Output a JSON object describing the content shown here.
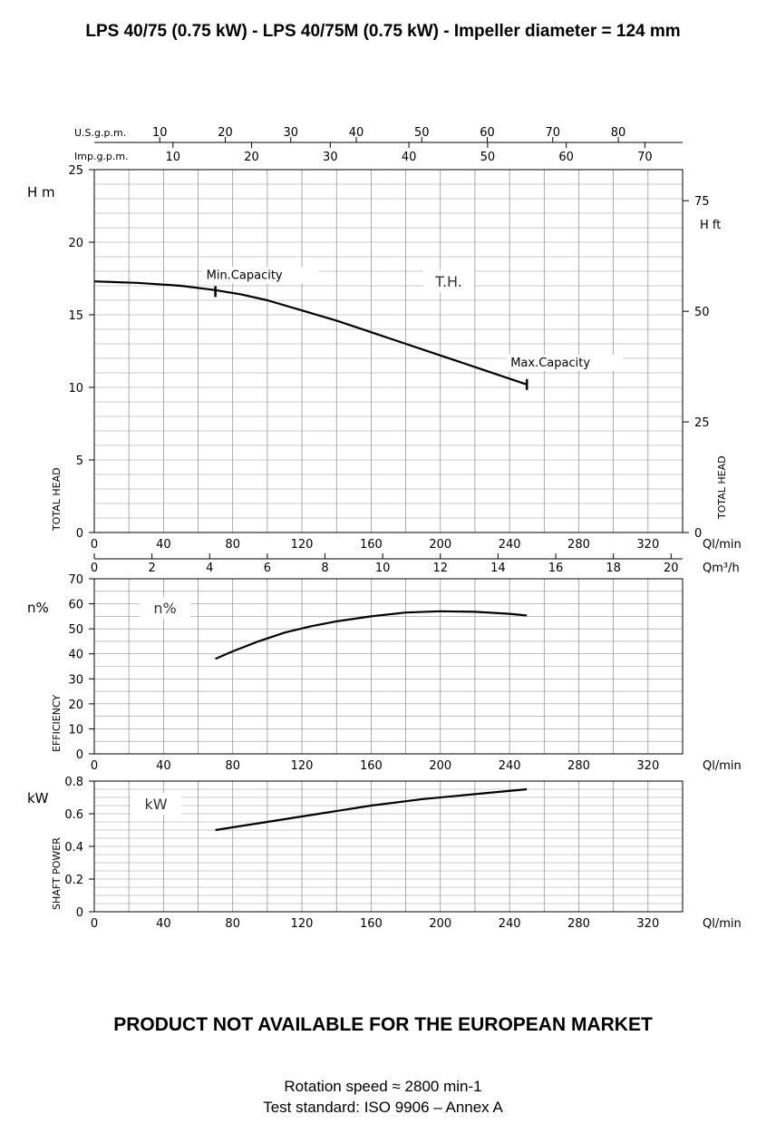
{
  "header": {
    "title": "LPS 40/75 (0.75 kW) - LPS 40/75M (0.75 kW) - Impeller diameter = 124 mm"
  },
  "footer": {
    "notice": "PRODUCT NOT AVAILABLE FOR THE EUROPEAN MARKET",
    "rotation": "Rotation speed ≈ 2800 min-1",
    "standard": "Test standard: ISO 9906 – Annex A"
  },
  "chart_data": [
    {
      "type": "line",
      "id": "head",
      "x_unit": "Ql/min",
      "y_unit": "H m",
      "ylabel": "TOTAL HEAD",
      "y2_unit": "H ft",
      "xlim": [
        0,
        340
      ],
      "ylim": [
        0,
        25
      ],
      "x_ticks": [
        0,
        40,
        80,
        120,
        160,
        200,
        240,
        280,
        320
      ],
      "y_ticks": [
        0,
        5,
        10,
        15,
        20,
        25
      ],
      "y2_ticks": [
        0,
        25,
        50,
        75
      ],
      "top_axis_us_label": "U.S.g.p.m.",
      "top_axis_us_ticks": [
        10,
        20,
        30,
        40,
        50,
        60,
        70,
        80
      ],
      "top_axis_imp_label": "Imp.g.p.m.",
      "top_axis_imp_ticks": [
        10,
        20,
        30,
        40,
        50,
        60,
        70
      ],
      "m3h_unit": "Qm³/h",
      "m3h_ticks": [
        0,
        2,
        4,
        6,
        8,
        10,
        12,
        14,
        16,
        18,
        20
      ],
      "grid": true,
      "curve_label": "T.H.",
      "annotations": [
        {
          "text": "Min.Capacity",
          "x": 70,
          "y": 16.6
        },
        {
          "text": "Max.Capacity",
          "x": 250,
          "y": 10.2
        }
      ],
      "series": [
        {
          "x": [
            0,
            25,
            50,
            70,
            85,
            100,
            120,
            140,
            160,
            180,
            200,
            220,
            240,
            250
          ],
          "y": [
            17.3,
            17.2,
            17.0,
            16.7,
            16.4,
            16.0,
            15.3,
            14.6,
            13.8,
            13.0,
            12.2,
            11.4,
            10.6,
            10.2
          ]
        }
      ]
    },
    {
      "type": "line",
      "id": "efficiency",
      "x_unit": "Ql/min",
      "y_unit": "n%",
      "ylabel": "EFFICIENCY",
      "xlim": [
        0,
        340
      ],
      "ylim": [
        0,
        70
      ],
      "x_ticks": [
        0,
        40,
        80,
        120,
        160,
        200,
        240,
        280,
        320
      ],
      "y_ticks": [
        0,
        10,
        20,
        30,
        40,
        50,
        60,
        70
      ],
      "grid": true,
      "curve_label": "n%",
      "series": [
        {
          "x": [
            70,
            80,
            95,
            110,
            125,
            140,
            160,
            180,
            200,
            220,
            240,
            250
          ],
          "y": [
            38,
            41,
            45,
            48.5,
            51,
            53,
            55,
            56.5,
            57,
            56.8,
            56,
            55.3
          ]
        }
      ]
    },
    {
      "type": "line",
      "id": "power",
      "x_unit": "Ql/min",
      "y_unit": "kW",
      "ylabel": "SHAFT POWER",
      "xlim": [
        0,
        340
      ],
      "ylim": [
        0,
        0.8
      ],
      "x_ticks": [
        0,
        40,
        80,
        120,
        160,
        200,
        240,
        280,
        320
      ],
      "y_ticks": [
        0,
        0.2,
        0.4,
        0.6,
        0.8
      ],
      "grid": true,
      "curve_label": "kW",
      "series": [
        {
          "x": [
            70,
            100,
            130,
            160,
            190,
            220,
            250
          ],
          "y": [
            0.5,
            0.55,
            0.6,
            0.65,
            0.69,
            0.72,
            0.75
          ]
        }
      ]
    }
  ]
}
